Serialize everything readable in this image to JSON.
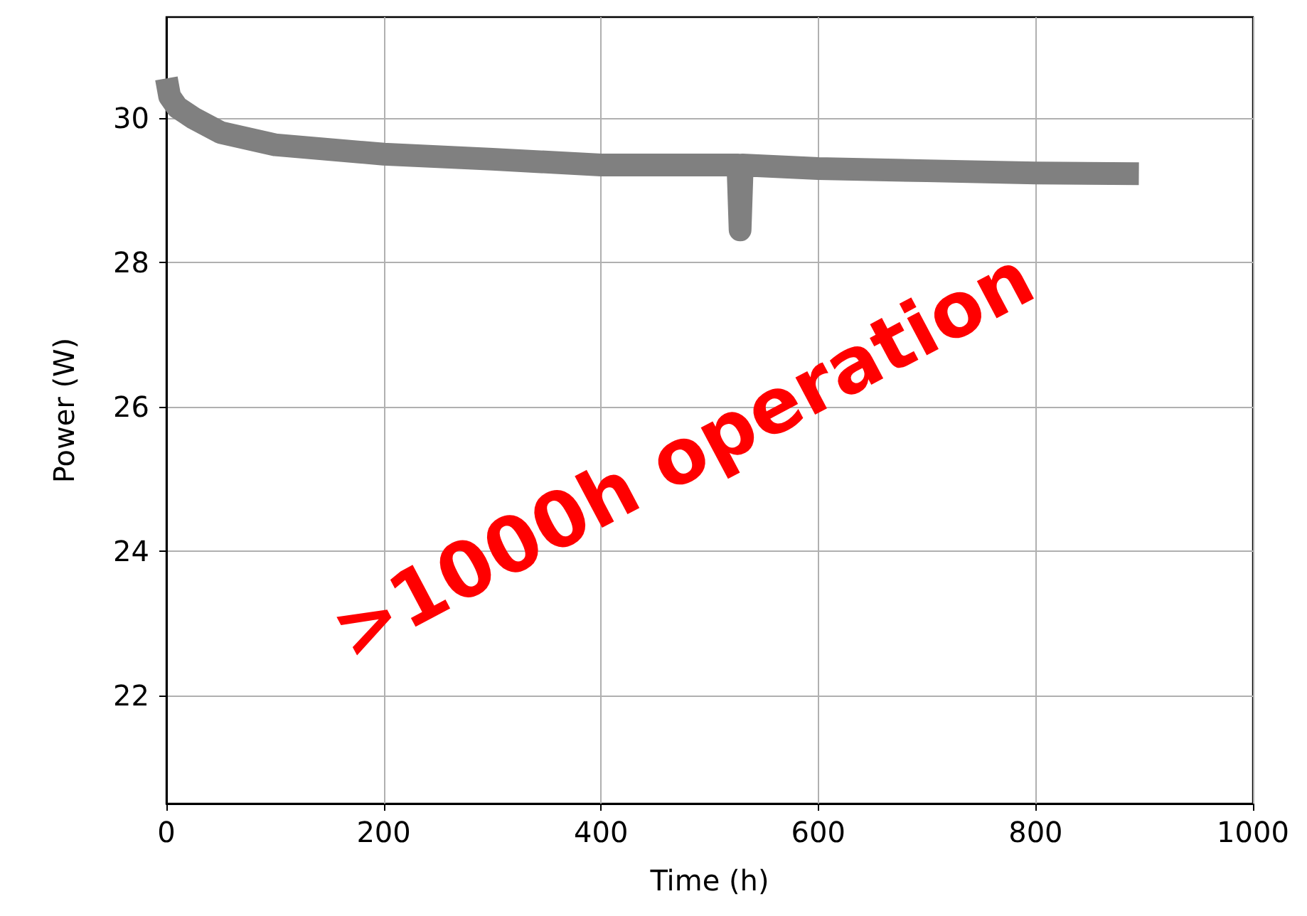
{
  "chart_data": {
    "type": "line",
    "xlabel": "Time (h)",
    "ylabel": "Power (W)",
    "xlim": [
      0,
      1000
    ],
    "xticks": [
      0,
      200,
      400,
      600,
      800,
      1000
    ],
    "ylim": [
      20.5,
      31.4
    ],
    "yticks": [
      22,
      24,
      26,
      28,
      30
    ],
    "grid": true,
    "line_style": "solid",
    "marker": "none",
    "annotations": [
      ">1000h operation"
    ],
    "series": [
      {
        "color": "#808080",
        "x": [
          0,
          3,
          10,
          25,
          50,
          100,
          200,
          300,
          400,
          500,
          526,
          528,
          530,
          600,
          700,
          800,
          895
        ],
        "values": [
          30.55,
          30.3,
          30.15,
          30.0,
          29.8,
          29.63,
          29.5,
          29.43,
          29.35,
          29.35,
          29.35,
          28.45,
          29.35,
          29.3,
          29.27,
          29.24,
          29.23
        ]
      }
    ]
  }
}
